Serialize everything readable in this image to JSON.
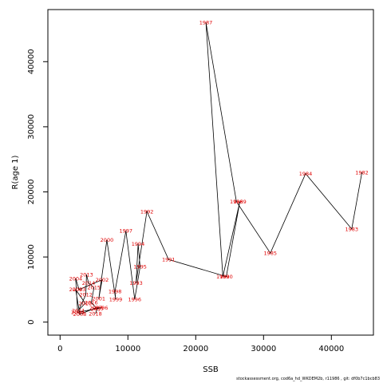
{
  "chart_data": {
    "type": "line",
    "xlabel": "SSB",
    "ylabel": "R(age 1)",
    "xlim": [
      -1800,
      46200
    ],
    "ylim": [
      -2000,
      48000
    ],
    "x_ticks": [
      0,
      10000,
      20000,
      30000,
      40000
    ],
    "y_ticks": [
      0,
      10000,
      20000,
      30000,
      40000
    ],
    "grid": false,
    "line_color": "#000000",
    "label_color": "#e00000",
    "points": [
      {
        "year": "1982",
        "x": 44500,
        "y": 23000
      },
      {
        "year": "1983",
        "x": 43000,
        "y": 14300
      },
      {
        "year": "1984",
        "x": 36200,
        "y": 22800
      },
      {
        "year": "1985",
        "x": 31000,
        "y": 10600
      },
      {
        "year": "1986",
        "x": 26000,
        "y": 18500
      },
      {
        "year": "1987",
        "x": 21500,
        "y": 46000
      },
      {
        "year": "1988",
        "x": 24000,
        "y": 7000
      },
      {
        "year": "1989",
        "x": 26500,
        "y": 18500
      },
      {
        "year": "1990",
        "x": 24500,
        "y": 7000
      },
      {
        "year": "1991",
        "x": 16000,
        "y": 9600
      },
      {
        "year": "1992",
        "x": 12800,
        "y": 17000
      },
      {
        "year": "1993",
        "x": 11200,
        "y": 6000
      },
      {
        "year": "1994",
        "x": 11500,
        "y": 12000
      },
      {
        "year": "1995",
        "x": 11800,
        "y": 8500
      },
      {
        "year": "1996",
        "x": 11000,
        "y": 3500
      },
      {
        "year": "1997",
        "x": 9700,
        "y": 14000
      },
      {
        "year": "1998",
        "x": 8100,
        "y": 4700
      },
      {
        "year": "1999",
        "x": 8200,
        "y": 3500
      },
      {
        "year": "2000",
        "x": 6900,
        "y": 12600
      },
      {
        "year": "2001",
        "x": 5700,
        "y": 3600
      },
      {
        "year": "2002",
        "x": 6200,
        "y": 6500
      },
      {
        "year": "2003",
        "x": 2800,
        "y": 5000
      },
      {
        "year": "2004",
        "x": 2300,
        "y": 6700
      },
      {
        "year": "2005",
        "x": 2600,
        "y": 1500
      },
      {
        "year": "2006",
        "x": 6100,
        "y": 2200
      },
      {
        "year": "2007",
        "x": 5300,
        "y": 2200
      },
      {
        "year": "2008",
        "x": 2900,
        "y": 1200
      },
      {
        "year": "2009",
        "x": 2300,
        "y": 5000
      },
      {
        "year": "2010",
        "x": 3700,
        "y": 2900
      },
      {
        "year": "2011",
        "x": 2700,
        "y": 1800
      },
      {
        "year": "2012",
        "x": 3800,
        "y": 4200
      },
      {
        "year": "2013",
        "x": 3900,
        "y": 7300
      },
      {
        "year": "2014",
        "x": 4200,
        "y": 6000
      },
      {
        "year": "2015",
        "x": 5000,
        "y": 5300
      },
      {
        "year": "2016",
        "x": 4600,
        "y": 3000
      },
      {
        "year": "2017",
        "x": 5500,
        "y": 2000
      },
      {
        "year": "2018",
        "x": 5200,
        "y": 1300
      }
    ]
  },
  "footer": {
    "text": "stockassessment.org,  cod6a_hd_WKDEM2b,  r11986 ,  git:  df0b7c1bcb83"
  }
}
